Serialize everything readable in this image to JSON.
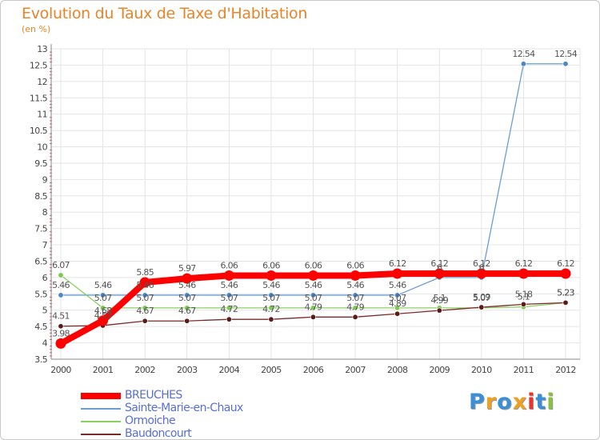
{
  "chart_data": {
    "type": "line",
    "title": "Evolution du Taux de Taxe d'Habitation",
    "unit_label": "(en %)",
    "xlabel": "",
    "ylabel": "",
    "ylim": [
      3.5,
      13
    ],
    "yticks": [
      "3.5",
      "4",
      "4.5",
      "5",
      "5.5",
      "6",
      "6.5",
      "7",
      "7.5",
      "8",
      "8.5",
      "9",
      "9.5",
      "10",
      "10.5",
      "11",
      "11.5",
      "12",
      "12.5",
      "13"
    ],
    "x": [
      "2000",
      "2001",
      "2002",
      "2003",
      "2004",
      "2005",
      "2006",
      "2007",
      "2008",
      "2009",
      "2010",
      "2011",
      "2012"
    ],
    "series": [
      {
        "name": "BREUCHES",
        "color": "#ff0000",
        "values": [
          3.98,
          4.68,
          5.85,
          5.97,
          6.06,
          6.06,
          6.06,
          6.06,
          6.12,
          6.12,
          6.12,
          6.12,
          6.12
        ],
        "labels": [
          "3.98",
          "4.68",
          "5.85",
          "5.97",
          "6.06",
          "6.06",
          "6.06",
          "6.06",
          "6.12",
          "6.12",
          "6.12",
          "6.12",
          "6.12"
        ]
      },
      {
        "name": "Sainte-Marie-en-Chaux",
        "color": "#6a9ed0",
        "values": [
          5.46,
          5.46,
          5.46,
          5.46,
          5.46,
          5.46,
          5.46,
          5.46,
          5.46,
          6,
          6,
          12.54,
          12.54
        ],
        "labels": [
          "5.46",
          "5.46",
          "5.46",
          "5.46",
          "5.46",
          "5.46",
          "5.46",
          "5.46",
          "5.46",
          "6",
          "6",
          "12.54",
          "12.54"
        ]
      },
      {
        "name": "Ormoiche",
        "color": "#88d060",
        "values": [
          6.07,
          5.07,
          5.07,
          5.07,
          5.07,
          5.07,
          5.07,
          5.07,
          5.07,
          5.07,
          5.07,
          5.1,
          5.23
        ],
        "labels": [
          "6.07",
          "5.07",
          "5.07",
          "5.07",
          "5.07",
          "5.07",
          "5.07",
          "5.07",
          "5.07",
          "5.1",
          "5.07",
          "5.1",
          "5.23"
        ]
      },
      {
        "name": "Baudoncourt",
        "color": "#7a2a2a",
        "values": [
          4.51,
          4.53,
          4.67,
          4.67,
          4.72,
          4.72,
          4.79,
          4.79,
          4.89,
          4.99,
          5.09,
          5.18,
          5.23
        ],
        "labels": [
          "4.51",
          "4.53",
          "4.67",
          "4.67",
          "4.72",
          "4.72",
          "4.79",
          "4.79",
          "4.89",
          "4.99",
          "5.09",
          "5.18",
          "5.23"
        ]
      }
    ]
  },
  "branding": {
    "letters": [
      "P",
      "r",
      "o",
      "x",
      "i",
      "t",
      "i"
    ],
    "colors": [
      "#3a8fd8",
      "#f0a020",
      "#3a8fd8",
      "#f0a020",
      "#e8342a",
      "#3a8fd8",
      "#88c040"
    ]
  }
}
